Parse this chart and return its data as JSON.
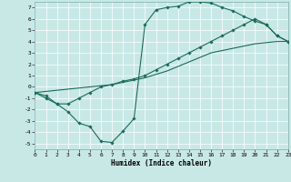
{
  "xlabel": "Humidex (Indice chaleur)",
  "xlim": [
    0,
    23
  ],
  "ylim": [
    -5.5,
    7.5
  ],
  "xticks": [
    0,
    1,
    2,
    3,
    4,
    5,
    6,
    7,
    8,
    9,
    10,
    11,
    12,
    13,
    14,
    15,
    16,
    17,
    18,
    19,
    20,
    21,
    22,
    23
  ],
  "yticks": [
    -5,
    -4,
    -3,
    -2,
    -1,
    0,
    1,
    2,
    3,
    4,
    5,
    6,
    7
  ],
  "bg_color": "#c8e8e6",
  "line_color": "#1a6b5a",
  "grid_color": "#b0d8d5",
  "curve1_x": [
    0,
    1,
    2,
    3,
    4,
    5,
    6,
    7,
    8,
    9,
    10,
    11,
    12,
    13,
    14,
    15,
    16,
    17,
    18,
    19,
    20,
    21,
    22,
    23
  ],
  "curve1_y": [
    -0.5,
    -1.0,
    -1.5,
    -2.2,
    -3.2,
    -3.5,
    -4.8,
    -4.9,
    -3.9,
    -2.8,
    5.5,
    6.8,
    7.0,
    7.1,
    7.5,
    7.5,
    7.4,
    7.0,
    6.7,
    6.2,
    5.8,
    5.5,
    4.5,
    4.0
  ],
  "curve2_x": [
    0,
    1,
    2,
    3,
    4,
    5,
    6,
    7,
    8,
    9,
    10,
    11,
    12,
    13,
    14,
    15,
    16,
    17,
    18,
    19,
    20,
    21,
    22,
    23
  ],
  "curve2_y": [
    -0.5,
    -0.8,
    -1.5,
    -1.5,
    -1.0,
    -0.5,
    0.0,
    0.2,
    0.5,
    0.7,
    1.0,
    1.5,
    2.0,
    2.5,
    3.0,
    3.5,
    4.0,
    4.5,
    5.0,
    5.5,
    6.0,
    5.5,
    4.5,
    4.0
  ],
  "curve3_x": [
    0,
    1,
    2,
    3,
    4,
    5,
    6,
    7,
    8,
    9,
    10,
    11,
    12,
    13,
    14,
    15,
    16,
    17,
    18,
    19,
    20,
    21,
    22,
    23
  ],
  "curve3_y": [
    -0.5,
    -0.4,
    -0.3,
    -0.2,
    -0.1,
    0.0,
    0.1,
    0.2,
    0.4,
    0.6,
    0.8,
    1.1,
    1.4,
    1.8,
    2.2,
    2.6,
    3.0,
    3.2,
    3.4,
    3.6,
    3.8,
    3.9,
    4.0,
    4.0
  ]
}
